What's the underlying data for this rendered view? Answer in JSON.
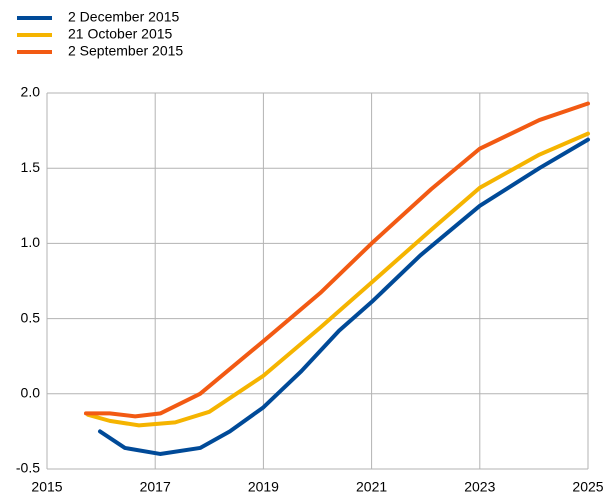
{
  "chart_data": {
    "type": "line",
    "series": [
      {
        "name": "2 December 2015",
        "color": "#004a98",
        "x": [
          2015.98,
          2016.44,
          2017.09,
          2017.83,
          2018.38,
          2019.0,
          2019.7,
          2020.4,
          2021.0,
          2021.9,
          2023.0,
          2024.1,
          2025.0
        ],
        "values": [
          -0.25,
          -0.36,
          -0.4,
          -0.36,
          -0.25,
          -0.09,
          0.15,
          0.42,
          0.61,
          0.92,
          1.25,
          1.5,
          1.69
        ]
      },
      {
        "name": "21 October 2015",
        "color": "#f5b400",
        "x": [
          2015.76,
          2016.16,
          2016.7,
          2017.37,
          2018.0,
          2019.0,
          2020.05,
          2021.0,
          2022.1,
          2023.0,
          2024.1,
          2025.0
        ],
        "values": [
          -0.14,
          -0.18,
          -0.21,
          -0.19,
          -0.12,
          0.12,
          0.44,
          0.74,
          1.09,
          1.37,
          1.59,
          1.73
        ]
      },
      {
        "name": "2 September 2015",
        "color": "#f25a13",
        "x": [
          2015.72,
          2016.16,
          2016.63,
          2017.1,
          2017.83,
          2019.0,
          2020.05,
          2021.0,
          2022.1,
          2023.0,
          2024.1,
          2025.0
        ],
        "values": [
          -0.13,
          -0.13,
          -0.15,
          -0.13,
          0.0,
          0.35,
          0.67,
          1.0,
          1.36,
          1.63,
          1.82,
          1.93
        ]
      }
    ],
    "xlim": [
      2015,
      2025
    ],
    "xticks": [
      2015,
      2017,
      2019,
      2021,
      2023,
      2025
    ],
    "ylim": [
      -0.5,
      2.0
    ],
    "yticks": [
      -0.5,
      {
        "value": 0,
        "label": "0.0"
      },
      0.5,
      {
        "value": 1,
        "label": "1.0"
      },
      1.5,
      {
        "value": 2,
        "label": "2.0"
      }
    ],
    "grid": true,
    "legend": "top-left"
  }
}
